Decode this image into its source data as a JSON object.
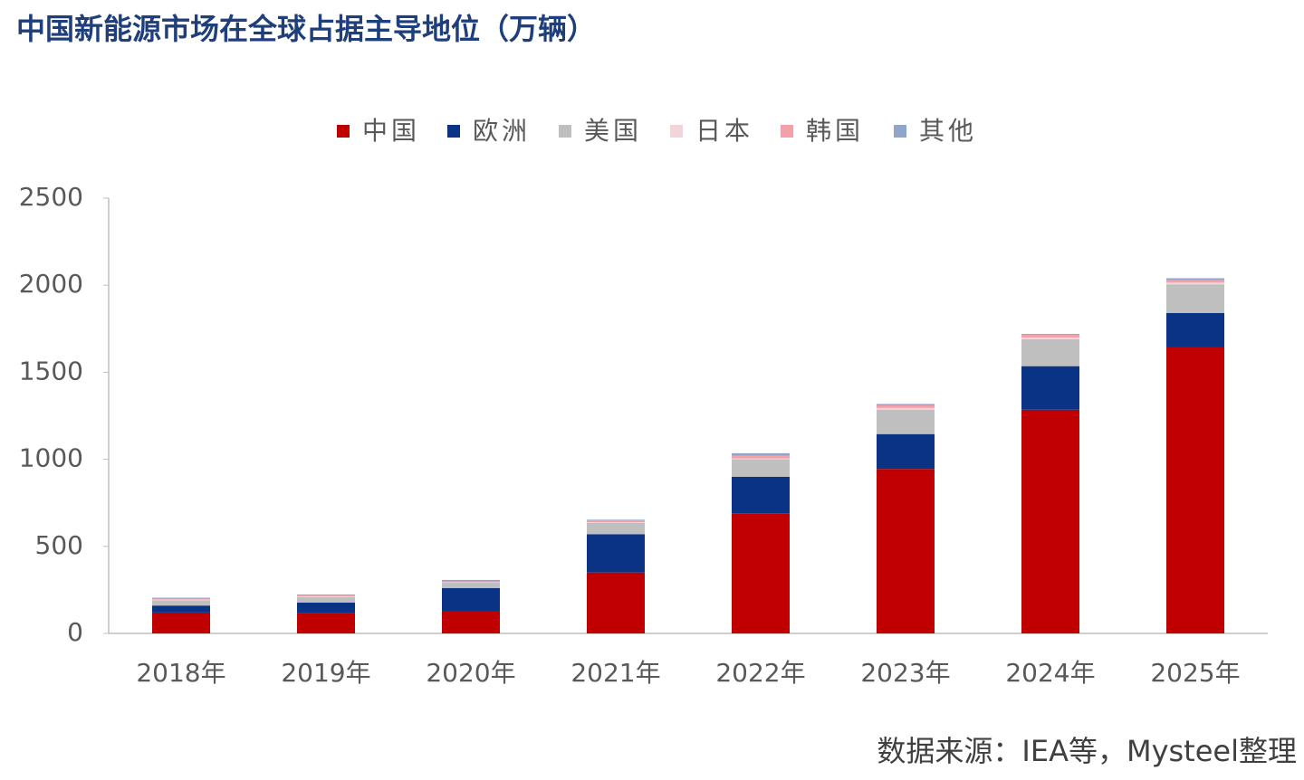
{
  "chart_data": {
    "type": "stacked_bar",
    "title": "中国新能源市场在全球占据主导地位（万辆）",
    "source": "数据来源：IEA等，Mysteel整理",
    "categories": [
      "2018年",
      "2019年",
      "2020年",
      "2021年",
      "2022年",
      "2023年",
      "2024年",
      "2025年"
    ],
    "series": [
      {
        "name": "中国",
        "color": "#c00000",
        "values": [
          120,
          115,
          130,
          350,
          690,
          945,
          1285,
          1645
        ]
      },
      {
        "name": "欧洲",
        "color": "#0b3385",
        "values": [
          40,
          62,
          130,
          220,
          210,
          200,
          250,
          195
        ]
      },
      {
        "name": "美国",
        "color": "#bfbfbf",
        "values": [
          30,
          31,
          31,
          65,
          100,
          140,
          155,
          165
        ]
      },
      {
        "name": "日本",
        "color": "#f2d5d8",
        "values": [
          5,
          5,
          3,
          3,
          5,
          10,
          10,
          10
        ]
      },
      {
        "name": "韩国",
        "color": "#f4a0ab",
        "values": [
          5,
          5,
          5,
          10,
          15,
          15,
          15,
          15
        ]
      },
      {
        "name": "其他",
        "color": "#8fa5cc",
        "values": [
          5,
          5,
          8,
          5,
          15,
          8,
          5,
          10
        ]
      }
    ],
    "ylim": [
      0,
      2500
    ],
    "yticks": [
      0,
      500,
      1000,
      1500,
      2000,
      2500
    ],
    "legend": "top"
  }
}
